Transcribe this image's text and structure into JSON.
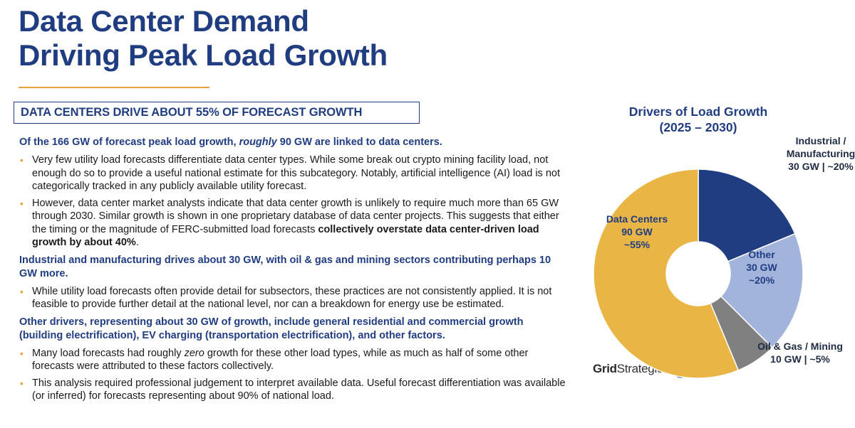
{
  "header": {
    "title_line1": "Data Center Demand",
    "title_line2": "Driving Peak Load Growth",
    "rule_color": "#e9a23b"
  },
  "section": {
    "heading": "DATA CENTERS DRIVE ABOUT 55% OF FORECAST GROWTH"
  },
  "body": {
    "p1": {
      "lead_before": "Of the 166 GW of forecast peak load growth, ",
      "lead_em": "roughly",
      "lead_after": " 90 GW are linked to data centers.",
      "b1": "Very few utility load forecasts differentiate data center types. While some break out crypto mining facility load, not enough do so to provide a useful national estimate for this subcategory. Notably, artificial intelligence (AI) load is not categorically tracked in any publicly available utility forecast.",
      "b2_text": "However, data center market analysts indicate that data center growth is unlikely to require much more than 65 GW through 2030. Similar growth is shown in one proprietary database of data center projects. This suggests that either the timing or the magnitude of FERC-submitted load forecasts ",
      "b2_bold": "collectively overstate data center-driven load growth by about 40%",
      "b2_end": "."
    },
    "p2": {
      "lead": "Industrial and manufacturing drives about 30 GW, with oil & gas and mining sectors contributing perhaps 10 GW more.",
      "b1": "While utility load forecasts often provide detail for subsectors, these practices are not consistently applied. It is not feasible to provide further detail at the national level, nor can a breakdown for energy use be estimated."
    },
    "p3": {
      "lead": "Other drivers, representing about 30 GW of growth, include general residential and commercial growth (building electrification), EV charging (transportation electrification), and other factors.",
      "b1_before": "Many load forecasts had roughly ",
      "b1_em": "zero",
      "b1_after": " growth for these other load types, while as much as half of some other forecasts were attributed to these factors collectively.",
      "b2": "This analysis required professional judgement to interpret available data. Useful forecast differentiation was available (or inferred) for forecasts representing about 90% of national load."
    }
  },
  "logo": {
    "word1": "Grid",
    "word2": "Strategies"
  },
  "chart_data": {
    "type": "pie",
    "style": "donut",
    "title_line1": "Drivers of Load Growth",
    "title_line2": "(2025 – 2030)",
    "unit": "GW",
    "slices": [
      {
        "name": "Industrial / Manufacturing",
        "value": 30,
        "percent_label": "~20%",
        "color": "#213d82",
        "label_lines": [
          "Industrial /",
          "Manufacturing",
          "30 GW | ~20%"
        ],
        "label_color": "#1f2a44"
      },
      {
        "name": "Other",
        "value": 30,
        "percent_label": "~20%",
        "color": "#a3b4dc",
        "label_lines": [
          "Other",
          "30 GW",
          "~20%"
        ],
        "label_color": "#213d82"
      },
      {
        "name": "Oil & Gas / Mining",
        "value": 10,
        "percent_label": "~5%",
        "color": "#808080",
        "label_lines": [
          "Oil & Gas / Mining",
          "10 GW | ~5%"
        ],
        "label_color": "#1f2a44"
      },
      {
        "name": "Data Centers",
        "value": 90,
        "percent_label": "~55%",
        "color": "#e9b544",
        "label_lines": [
          "Data Centers",
          "90 GW",
          "~55%"
        ],
        "label_color": "#213d82"
      }
    ]
  }
}
